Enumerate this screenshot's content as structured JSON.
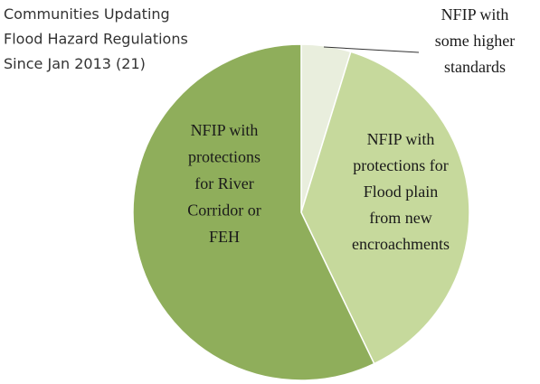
{
  "chart_data": {
    "type": "pie",
    "title": [
      "Communities Updating",
      "Flood Hazard Regulations",
      "Since Jan 2013  (21)"
    ],
    "categories": [
      [
        "NFIP with",
        "some higher",
        "standards"
      ],
      [
        "NFIP with",
        "protections for",
        "Flood plain",
        "from new",
        "encroachments"
      ],
      [
        "NFIP with",
        "protections",
        "for River",
        "Corridor or",
        "FEH"
      ]
    ],
    "values": [
      1,
      8,
      12
    ],
    "colors": [
      "#e9eedd",
      "#c6d99c",
      "#8fae5b"
    ]
  }
}
